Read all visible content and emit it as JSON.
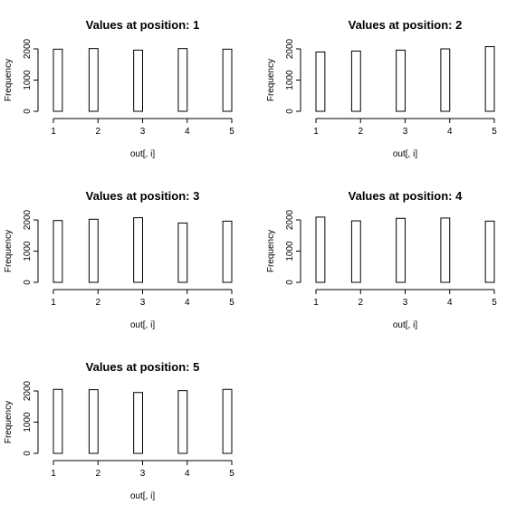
{
  "chart_data": [
    {
      "type": "bar",
      "title": "Values at position: 1",
      "xlabel": "out[, i]",
      "ylabel": "Frequency",
      "xlim": [
        1,
        5
      ],
      "ylim": [
        0,
        2000
      ],
      "x_ticks": [
        "1",
        "2",
        "3",
        "4",
        "5"
      ],
      "y_ticks": [
        "0",
        "1000",
        "2000"
      ],
      "bins": [
        {
          "from": 1.0,
          "to": 1.2,
          "value": 1990
        },
        {
          "from": 1.2,
          "to": 1.8,
          "value": 0
        },
        {
          "from": 1.8,
          "to": 2.0,
          "value": 2010
        },
        {
          "from": 2.0,
          "to": 2.8,
          "value": 0
        },
        {
          "from": 2.8,
          "to": 3.0,
          "value": 1960
        },
        {
          "from": 3.0,
          "to": 3.8,
          "value": 0
        },
        {
          "from": 3.8,
          "to": 4.0,
          "value": 2010
        },
        {
          "from": 4.0,
          "to": 4.8,
          "value": 0
        },
        {
          "from": 4.8,
          "to": 5.0,
          "value": 1990
        }
      ]
    },
    {
      "type": "bar",
      "title": "Values at position: 2",
      "xlabel": "out[, i]",
      "ylabel": "Frequency",
      "xlim": [
        1,
        5
      ],
      "ylim": [
        0,
        2000
      ],
      "x_ticks": [
        "1",
        "2",
        "3",
        "4",
        "5"
      ],
      "y_ticks": [
        "0",
        "1000",
        "2000"
      ],
      "bins": [
        {
          "from": 1.0,
          "to": 1.2,
          "value": 1900
        },
        {
          "from": 1.2,
          "to": 1.8,
          "value": 0
        },
        {
          "from": 1.8,
          "to": 2.0,
          "value": 1930
        },
        {
          "from": 2.0,
          "to": 2.8,
          "value": 0
        },
        {
          "from": 2.8,
          "to": 3.0,
          "value": 1960
        },
        {
          "from": 3.0,
          "to": 3.8,
          "value": 0
        },
        {
          "from": 3.8,
          "to": 4.0,
          "value": 2000
        },
        {
          "from": 4.0,
          "to": 4.8,
          "value": 0
        },
        {
          "from": 4.8,
          "to": 5.0,
          "value": 2070
        }
      ]
    },
    {
      "type": "bar",
      "title": "Values at position: 3",
      "xlabel": "out[, i]",
      "ylabel": "Frequency",
      "xlim": [
        1,
        5
      ],
      "ylim": [
        0,
        2000
      ],
      "x_ticks": [
        "1",
        "2",
        "3",
        "4",
        "5"
      ],
      "y_ticks": [
        "0",
        "1000",
        "2000"
      ],
      "bins": [
        {
          "from": 1.0,
          "to": 1.2,
          "value": 1980
        },
        {
          "from": 1.2,
          "to": 1.8,
          "value": 0
        },
        {
          "from": 1.8,
          "to": 2.0,
          "value": 2020
        },
        {
          "from": 2.0,
          "to": 2.8,
          "value": 0
        },
        {
          "from": 2.8,
          "to": 3.0,
          "value": 2070
        },
        {
          "from": 3.0,
          "to": 3.8,
          "value": 0
        },
        {
          "from": 3.8,
          "to": 4.0,
          "value": 1900
        },
        {
          "from": 4.0,
          "to": 4.8,
          "value": 0
        },
        {
          "from": 4.8,
          "to": 5.0,
          "value": 1960
        }
      ]
    },
    {
      "type": "bar",
      "title": "Values at position: 4",
      "xlabel": "out[, i]",
      "ylabel": "Frequency",
      "xlim": [
        1,
        5
      ],
      "ylim": [
        0,
        2000
      ],
      "x_ticks": [
        "1",
        "2",
        "3",
        "4",
        "5"
      ],
      "y_ticks": [
        "0",
        "1000",
        "2000"
      ],
      "bins": [
        {
          "from": 1.0,
          "to": 1.2,
          "value": 2090
        },
        {
          "from": 1.2,
          "to": 1.8,
          "value": 0
        },
        {
          "from": 1.8,
          "to": 2.0,
          "value": 1970
        },
        {
          "from": 2.0,
          "to": 2.8,
          "value": 0
        },
        {
          "from": 2.8,
          "to": 3.0,
          "value": 2050
        },
        {
          "from": 3.0,
          "to": 3.8,
          "value": 0
        },
        {
          "from": 3.8,
          "to": 4.0,
          "value": 2060
        },
        {
          "from": 4.0,
          "to": 4.8,
          "value": 0
        },
        {
          "from": 4.8,
          "to": 5.0,
          "value": 1960
        }
      ]
    },
    {
      "type": "bar",
      "title": "Values at position: 5",
      "xlabel": "out[, i]",
      "ylabel": "Frequency",
      "xlim": [
        1,
        5
      ],
      "ylim": [
        0,
        2000
      ],
      "x_ticks": [
        "1",
        "2",
        "3",
        "4",
        "5"
      ],
      "y_ticks": [
        "0",
        "1000",
        "2000"
      ],
      "bins": [
        {
          "from": 1.0,
          "to": 1.2,
          "value": 2050
        },
        {
          "from": 1.2,
          "to": 1.8,
          "value": 0
        },
        {
          "from": 1.8,
          "to": 2.0,
          "value": 2040
        },
        {
          "from": 2.0,
          "to": 2.8,
          "value": 0
        },
        {
          "from": 2.8,
          "to": 3.0,
          "value": 1950
        },
        {
          "from": 3.0,
          "to": 3.8,
          "value": 0
        },
        {
          "from": 3.8,
          "to": 4.0,
          "value": 2010
        },
        {
          "from": 4.0,
          "to": 4.8,
          "value": 0
        },
        {
          "from": 4.8,
          "to": 5.0,
          "value": 2050
        }
      ]
    }
  ]
}
